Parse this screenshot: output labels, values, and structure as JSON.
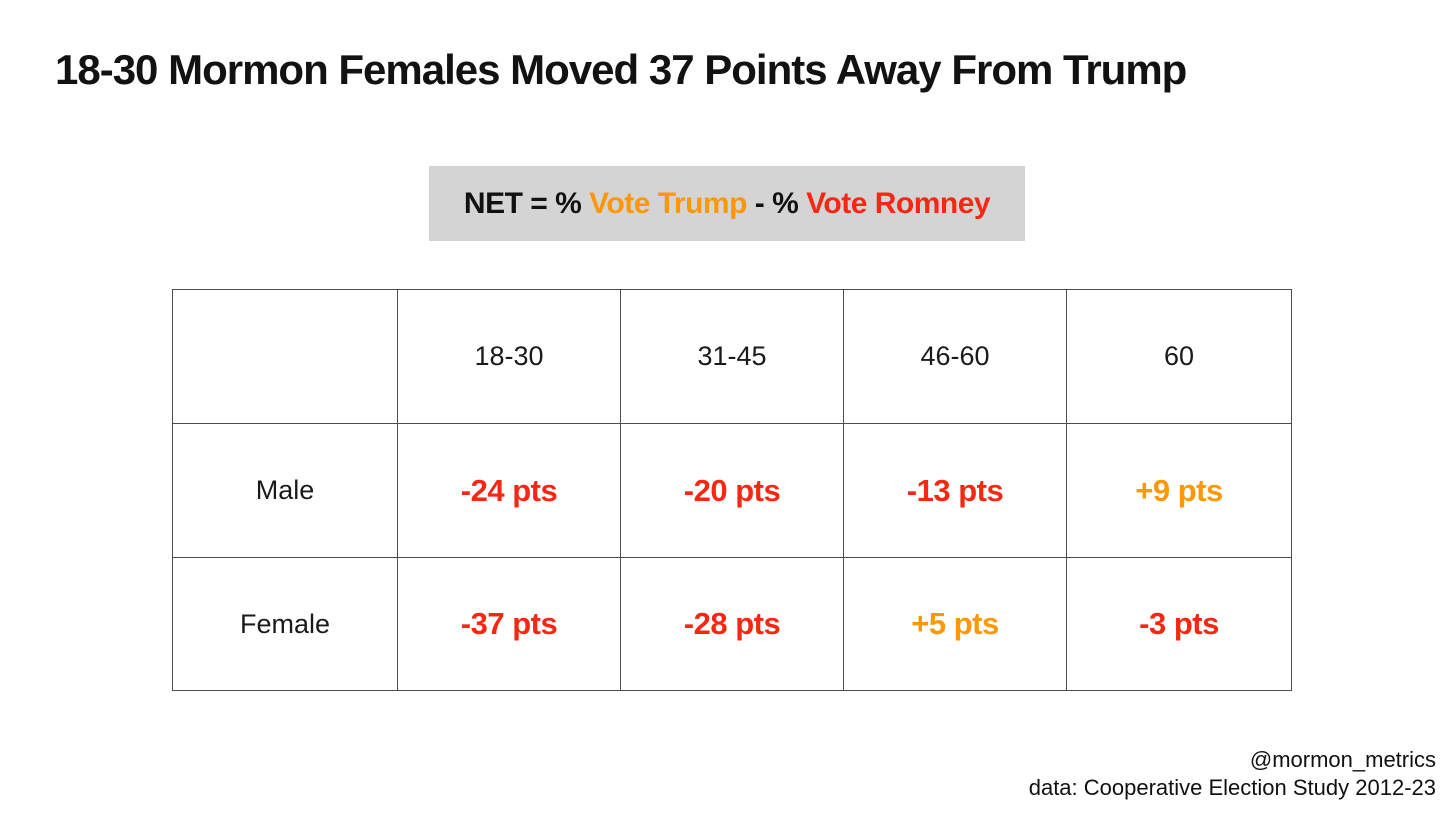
{
  "title": "18-30 Mormon Females Moved 37 Points Away From Trump",
  "formula": {
    "background": "#d4d4d4",
    "parts": [
      {
        "text": "NET = % ",
        "color": "#111111"
      },
      {
        "text": "Vote Trump",
        "color": "#fb9708"
      },
      {
        "text": " - % ",
        "color": "#111111"
      },
      {
        "text": "Vote Romney",
        "color": "#f62813"
      }
    ]
  },
  "colors": {
    "negative": "#f62813",
    "positive": "#fb9708",
    "text": "#111111",
    "formula_background": "#d4d4d4",
    "table_border": "#4d4d4d"
  },
  "chart_data": {
    "type": "table",
    "title": "18-30 Mormon Females Moved 37 Points Away From Trump",
    "note": "NET = % Vote Trump - % Vote Romney",
    "units": "pts",
    "columns": [
      "",
      "18-30",
      "31-45",
      "46-60",
      "60"
    ],
    "rows": [
      {
        "label": "Male",
        "values": [
          "-24 pts",
          "-20 pts",
          "-13 pts",
          "+9 pts"
        ],
        "numeric_pts": [
          -24,
          -20,
          -13,
          9
        ],
        "colors": [
          "#f62813",
          "#f62813",
          "#f62813",
          "#fb9708"
        ]
      },
      {
        "label": "Female",
        "values": [
          "-37 pts",
          "-28 pts",
          "+5 pts",
          "-3 pts"
        ],
        "numeric_pts": [
          -37,
          -28,
          5,
          -3
        ],
        "colors": [
          "#f62813",
          "#f62813",
          "#fb9708",
          "#f62813"
        ]
      }
    ]
  },
  "footer": {
    "handle": "@mormon_metrics",
    "source": "data: Cooperative Election Study 2012-23"
  }
}
